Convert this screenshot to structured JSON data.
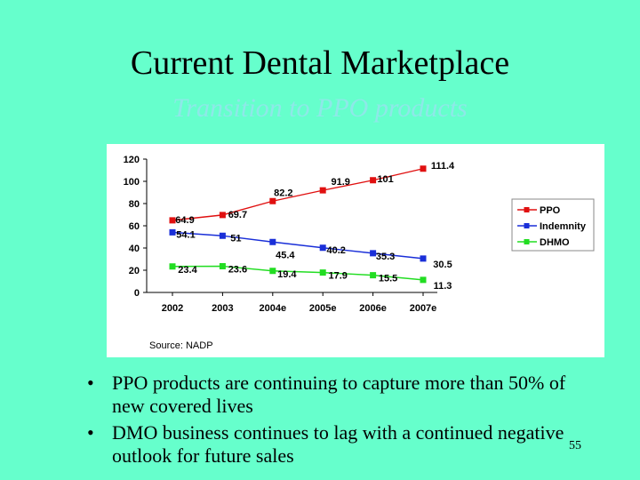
{
  "slide": {
    "title": "Current Dental Marketplace",
    "subtitle": "Transition to PPO products",
    "bullets": [
      "PPO products are continuing to capture more than 50% of new covered lives",
      "DMO business continues to lag with a continued negative outlook for future sales"
    ],
    "page_number": "55"
  },
  "chart_data": {
    "type": "line",
    "categories": [
      "2002",
      "2003",
      "2004e",
      "2005e",
      "2006e",
      "2007e"
    ],
    "yticks": [
      "120",
      "100",
      "80",
      "60",
      "40",
      "20",
      "0"
    ],
    "ylim": [
      0,
      120
    ],
    "grid": false,
    "legend_position": "right",
    "source": "Source: NADP",
    "series": [
      {
        "name": "PPO",
        "color": "#e01010",
        "values": [
          64.9,
          69.7,
          82.2,
          91.9,
          101,
          111.4
        ],
        "labels": [
          "64.9",
          "69.7",
          "82.2",
          "91.9",
          "101",
          "111.4"
        ]
      },
      {
        "name": "Indemnity",
        "color": "#1a2fd8",
        "values": [
          54.1,
          51,
          45.4,
          40.2,
          35.3,
          30.5
        ],
        "labels": [
          "54.1",
          "51",
          "45.4",
          "40.2",
          "35.3",
          "30.5"
        ]
      },
      {
        "name": "DHMO",
        "color": "#22dd22",
        "values": [
          23.4,
          23.6,
          19.4,
          17.9,
          15.5,
          11.3
        ],
        "labels": [
          "23.4",
          "23.6",
          "19.4",
          "17.9",
          "15.5",
          "11.3"
        ]
      }
    ]
  }
}
